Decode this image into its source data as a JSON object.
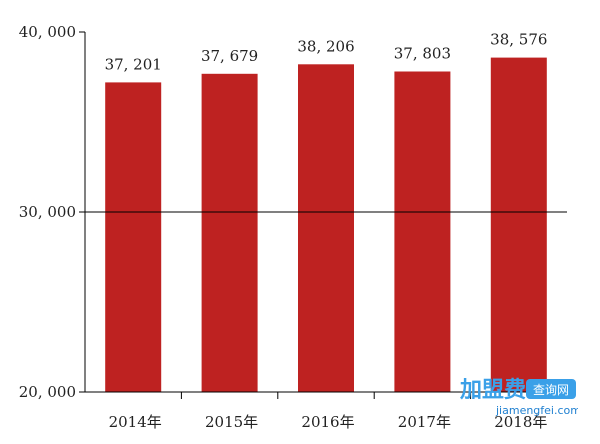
{
  "chart_data": {
    "type": "bar",
    "categories": [
      "2014年",
      "2015年",
      "2016年",
      "2017年",
      "2018年"
    ],
    "values": [
      37201,
      37679,
      38206,
      37803,
      38576
    ],
    "value_labels": [
      "37, 201",
      "37, 679",
      "38, 206",
      "37, 803",
      "38, 576"
    ],
    "title": "",
    "xlabel": "",
    "ylabel": "",
    "ylim": [
      20000,
      40000
    ],
    "yticks": [
      20000,
      30000,
      40000
    ],
    "ytick_labels": [
      "20, 000",
      "30, 000",
      "40, 000"
    ],
    "grid": false,
    "reference_line": 30000,
    "bar_color": "#be2221",
    "axis_color": "#000000"
  },
  "watermark": {
    "main": "加盟费",
    "badge": "查询网",
    "url": "jiamengfei.com",
    "color": "#3aa0e8"
  }
}
